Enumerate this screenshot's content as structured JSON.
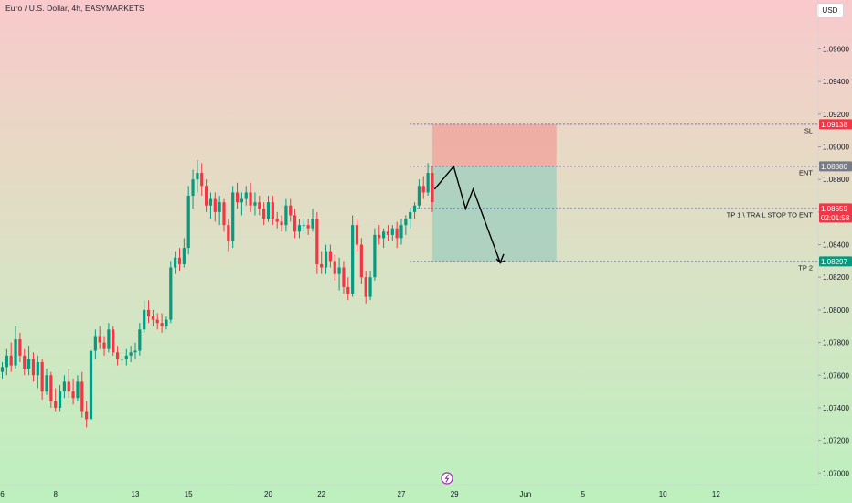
{
  "header": {
    "title": "Euro / U.S. Dollar, 4h, EASYMARKETS",
    "currency_button": "USD"
  },
  "colors": {
    "up": "#089981",
    "down": "#f23645",
    "stop_zone": "#f0aaa0",
    "target_zone": "#a8d0bf",
    "level_line": "#6b6fd1",
    "sl_tag": "#f23645",
    "ent_tag": "#787b86",
    "price_tag": "#f23645",
    "tp_tag": "#089981"
  },
  "chart_data": {
    "type": "candlestick",
    "symbol": "Euro / U.S. Dollar",
    "timeframe": "4h",
    "broker": "EASYMARKETS",
    "y_ticks": [
      "1.07000",
      "1.07200",
      "1.07400",
      "1.07600",
      "1.07800",
      "1.08000",
      "1.08200",
      "1.08400",
      "1.08600",
      "1.08800",
      "1.09000",
      "1.09200",
      "1.09400",
      "1.09600"
    ],
    "x_ticks": [
      {
        "label": "6",
        "bar": 0
      },
      {
        "label": "8",
        "bar": 12
      },
      {
        "label": "13",
        "bar": 30
      },
      {
        "label": "15",
        "bar": 42
      },
      {
        "label": "20",
        "bar": 60
      },
      {
        "label": "22",
        "bar": 72
      },
      {
        "label": "27",
        "bar": 90
      },
      {
        "label": "29",
        "bar": 102
      },
      {
        "label": "Jun",
        "bar": 118
      },
      {
        "label": "5",
        "bar": 131
      },
      {
        "label": "10",
        "bar": 149
      },
      {
        "label": "12",
        "bar": 161
      }
    ],
    "levels": [
      {
        "name": "SL",
        "label": "SL",
        "price": 1.09138,
        "tag": "1.09138"
      },
      {
        "name": "ENT",
        "label": "ENT",
        "price": 1.0888,
        "tag": "1.08880"
      },
      {
        "name": "TP1",
        "label": "TP 1 \\ TRAIL STOP TO ENT",
        "price": 1.08622,
        "tag": "1.08659",
        "countdown": "02:01:58"
      },
      {
        "name": "TP2",
        "label": "TP 2",
        "price": 1.08297,
        "tag": "1.08297"
      }
    ],
    "position": {
      "side": "short",
      "start_bar": 97,
      "end_bar": 125,
      "stop": 1.09138,
      "entry": 1.0888,
      "target": 1.08297
    },
    "projection_path": [
      {
        "bar": 97.5,
        "price": 1.0874
      },
      {
        "bar": 101.8,
        "price": 1.0888
      },
      {
        "bar": 104.5,
        "price": 1.0862
      },
      {
        "bar": 106.2,
        "price": 1.0874
      },
      {
        "bar": 112.3,
        "price": 1.0829
      },
      {
        "bar": 113.1,
        "price": 1.08342
      }
    ],
    "candles": [
      [
        1.0762,
        1.0768,
        1.0758,
        1.0765
      ],
      [
        1.0765,
        1.0776,
        1.076,
        1.0772
      ],
      [
        1.0772,
        1.078,
        1.0762,
        1.0766
      ],
      [
        1.0766,
        1.079,
        1.0764,
        1.0782
      ],
      [
        1.0782,
        1.0786,
        1.0768,
        1.0772
      ],
      [
        1.0772,
        1.0776,
        1.076,
        1.0764
      ],
      [
        1.0764,
        1.0778,
        1.076,
        1.077
      ],
      [
        1.077,
        1.0774,
        1.0756,
        1.076
      ],
      [
        1.076,
        1.0772,
        1.0752,
        1.0768
      ],
      [
        1.0768,
        1.077,
        1.0745,
        1.075
      ],
      [
        1.075,
        1.0764,
        1.0748,
        1.076
      ],
      [
        1.076,
        1.0762,
        1.074,
        1.0744
      ],
      [
        1.0744,
        1.0752,
        1.0738,
        1.074
      ],
      [
        1.074,
        1.0754,
        1.0738,
        1.075
      ],
      [
        1.075,
        1.076,
        1.0746,
        1.0756
      ],
      [
        1.0756,
        1.0764,
        1.0746,
        1.075
      ],
      [
        1.075,
        1.0758,
        1.0742,
        1.0746
      ],
      [
        1.0746,
        1.076,
        1.0744,
        1.0756
      ],
      [
        1.0756,
        1.0762,
        1.0734,
        1.0738
      ],
      [
        1.0738,
        1.0744,
        1.0728,
        1.0733
      ],
      [
        1.0733,
        1.0778,
        1.073,
        1.0775
      ],
      [
        1.0775,
        1.0788,
        1.077,
        1.0784
      ],
      [
        1.0784,
        1.079,
        1.0776,
        1.078
      ],
      [
        1.078,
        1.0784,
        1.0772,
        1.0776
      ],
      [
        1.0776,
        1.0792,
        1.0774,
        1.0788
      ],
      [
        1.0788,
        1.079,
        1.0772,
        1.0774
      ],
      [
        1.0774,
        1.0778,
        1.0766,
        1.077
      ],
      [
        1.077,
        1.0774,
        1.0766,
        1.077
      ],
      [
        1.077,
        1.0776,
        1.0766,
        1.0772
      ],
      [
        1.0772,
        1.0778,
        1.0768,
        1.0774
      ],
      [
        1.0774,
        1.078,
        1.077,
        1.0775
      ],
      [
        1.0775,
        1.0792,
        1.0772,
        1.0788
      ],
      [
        1.0788,
        1.0806,
        1.0786,
        1.08
      ],
      [
        1.08,
        1.0806,
        1.0792,
        1.0796
      ],
      [
        1.0796,
        1.08,
        1.079,
        1.0794
      ],
      [
        1.0794,
        1.0798,
        1.0788,
        1.0792
      ],
      [
        1.0792,
        1.0798,
        1.0786,
        1.079
      ],
      [
        1.079,
        1.0796,
        1.0788,
        1.0794
      ],
      [
        1.0794,
        1.083,
        1.0792,
        1.0826
      ],
      [
        1.0826,
        1.0836,
        1.0822,
        1.0832
      ],
      [
        1.0832,
        1.0838,
        1.0824,
        1.0828
      ],
      [
        1.0828,
        1.0844,
        1.0826,
        1.0838
      ],
      [
        1.0838,
        1.0876,
        1.0834,
        1.087
      ],
      [
        1.087,
        1.0886,
        1.0862,
        1.088
      ],
      [
        1.088,
        1.0892,
        1.0872,
        1.0884
      ],
      [
        1.0884,
        1.089,
        1.087,
        1.0876
      ],
      [
        1.0876,
        1.088,
        1.086,
        1.0864
      ],
      [
        1.0864,
        1.0872,
        1.0856,
        1.0868
      ],
      [
        1.0868,
        1.0872,
        1.0854,
        1.086
      ],
      [
        1.086,
        1.087,
        1.0852,
        1.0866
      ],
      [
        1.0866,
        1.0868,
        1.0848,
        1.0852
      ],
      [
        1.0852,
        1.0856,
        1.0836,
        1.0842
      ],
      [
        1.0842,
        1.0876,
        1.0838,
        1.0872
      ],
      [
        1.0872,
        1.0878,
        1.0862,
        1.0866
      ],
      [
        1.0866,
        1.0872,
        1.0858,
        1.0868
      ],
      [
        1.0868,
        1.0876,
        1.0864,
        1.0872
      ],
      [
        1.0872,
        1.0878,
        1.086,
        1.0864
      ],
      [
        1.0864,
        1.0872,
        1.0858,
        1.0866
      ],
      [
        1.0866,
        1.087,
        1.0858,
        1.0862
      ],
      [
        1.0862,
        1.0866,
        1.0852,
        1.0856
      ],
      [
        1.0856,
        1.087,
        1.0854,
        1.0866
      ],
      [
        1.0866,
        1.087,
        1.0852,
        1.0856
      ],
      [
        1.0856,
        1.086,
        1.085,
        1.0854
      ],
      [
        1.0854,
        1.0858,
        1.0848,
        1.0852
      ],
      [
        1.0852,
        1.0868,
        1.0848,
        1.0864
      ],
      [
        1.0864,
        1.0868,
        1.0854,
        1.0858
      ],
      [
        1.0858,
        1.0862,
        1.0844,
        1.0848
      ],
      [
        1.0848,
        1.0856,
        1.0844,
        1.0852
      ],
      [
        1.0852,
        1.0856,
        1.0848,
        1.0852
      ],
      [
        1.0852,
        1.0856,
        1.0846,
        1.085
      ],
      [
        1.085,
        1.0862,
        1.0848,
        1.0856
      ],
      [
        1.0856,
        1.086,
        1.0822,
        1.0828
      ],
      [
        1.0828,
        1.0836,
        1.0822,
        1.0826
      ],
      [
        1.0826,
        1.084,
        1.0822,
        1.0836
      ],
      [
        1.0836,
        1.084,
        1.0826,
        1.083
      ],
      [
        1.083,
        1.0834,
        1.0818,
        1.0822
      ],
      [
        1.0822,
        1.0832,
        1.0812,
        1.0826
      ],
      [
        1.0826,
        1.083,
        1.081,
        1.0814
      ],
      [
        1.0814,
        1.082,
        1.0806,
        1.081
      ],
      [
        1.081,
        1.0858,
        1.0808,
        1.0852
      ],
      [
        1.0852,
        1.0856,
        1.0836,
        1.084
      ],
      [
        1.084,
        1.0844,
        1.0816,
        1.082
      ],
      [
        1.082,
        1.0824,
        1.0804,
        1.0808
      ],
      [
        1.0808,
        1.0824,
        1.0806,
        1.082
      ],
      [
        1.082,
        1.085,
        1.0818,
        1.0846
      ],
      [
        1.0846,
        1.0852,
        1.084,
        1.0844
      ],
      [
        1.0844,
        1.085,
        1.0838,
        1.0848
      ],
      [
        1.0848,
        1.0852,
        1.0842,
        1.0846
      ],
      [
        1.0846,
        1.0852,
        1.0842,
        1.085
      ],
      [
        1.085,
        1.0854,
        1.0838,
        1.0844
      ],
      [
        1.0844,
        1.0856,
        1.084,
        1.0852
      ],
      [
        1.0852,
        1.0858,
        1.0846,
        1.0856
      ],
      [
        1.0856,
        1.0862,
        1.085,
        1.086
      ],
      [
        1.086,
        1.0866,
        1.0856,
        1.0864
      ],
      [
        1.0864,
        1.088,
        1.0862,
        1.0876
      ],
      [
        1.0876,
        1.0882,
        1.0868,
        1.0872
      ],
      [
        1.0872,
        1.089,
        1.087,
        1.0884
      ],
      [
        1.0884,
        1.0888,
        1.086,
        1.0866
      ]
    ]
  },
  "footer": {
    "icon": "lightning-icon"
  }
}
